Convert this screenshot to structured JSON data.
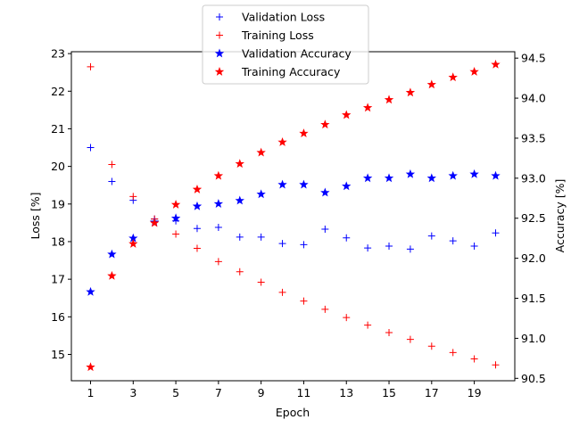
{
  "chart_data": {
    "type": "scatter",
    "xlabel": "Epoch",
    "ylabel_left": "Loss [%]",
    "ylabel_right": "Accuracy [%]",
    "x": [
      1,
      2,
      3,
      4,
      5,
      6,
      7,
      8,
      9,
      10,
      11,
      12,
      13,
      14,
      15,
      16,
      17,
      18,
      19,
      20
    ],
    "x_ticks": [
      "1",
      "3",
      "5",
      "7",
      "9",
      "11",
      "13",
      "15",
      "17",
      "19"
    ],
    "x_tick_values": [
      1,
      3,
      5,
      7,
      9,
      11,
      13,
      15,
      17,
      19
    ],
    "x_range": [
      0.1,
      20.9
    ],
    "y_left_range": [
      14.3,
      23.05
    ],
    "y_left_ticks": [
      "15",
      "16",
      "17",
      "18",
      "19",
      "20",
      "21",
      "22",
      "23"
    ],
    "y_left_tick_values": [
      15,
      16,
      17,
      18,
      19,
      20,
      21,
      22,
      23
    ],
    "y_right_range": [
      90.47,
      94.58
    ],
    "y_right_ticks": [
      "90.5",
      "91.0",
      "91.5",
      "92.0",
      "92.5",
      "93.0",
      "93.5",
      "94.0",
      "94.5"
    ],
    "y_right_tick_values": [
      90.5,
      91.0,
      91.5,
      92.0,
      92.5,
      93.0,
      93.5,
      94.0,
      94.5
    ],
    "legend_position": "top-center",
    "series": [
      {
        "name": "Validation Loss",
        "axis": "left",
        "marker": "plus",
        "color": "#0000ff",
        "values": [
          20.5,
          19.6,
          19.1,
          18.6,
          18.55,
          18.35,
          18.38,
          18.12,
          18.12,
          17.95,
          17.92,
          18.33,
          18.1,
          17.83,
          17.88,
          17.8,
          18.15,
          18.02,
          17.88,
          18.23
        ]
      },
      {
        "name": "Training Loss",
        "axis": "left",
        "marker": "plus",
        "color": "#ff0000",
        "values": [
          22.65,
          20.05,
          19.2,
          18.6,
          18.2,
          17.82,
          17.47,
          17.2,
          16.92,
          16.65,
          16.42,
          16.2,
          15.98,
          15.78,
          15.58,
          15.4,
          15.22,
          15.05,
          14.88,
          14.72
        ]
      },
      {
        "name": "Validation Accuracy",
        "axis": "right",
        "marker": "star",
        "color": "#0000ff",
        "values": [
          91.58,
          92.05,
          92.25,
          92.45,
          92.5,
          92.65,
          92.68,
          92.72,
          92.8,
          92.92,
          92.92,
          92.82,
          92.9,
          93.0,
          93.0,
          93.05,
          93.0,
          93.03,
          93.05,
          93.03
        ]
      },
      {
        "name": "Training Accuracy",
        "axis": "right",
        "marker": "star",
        "color": "#ff0000",
        "values": [
          90.64,
          91.78,
          92.18,
          92.44,
          92.67,
          92.86,
          93.03,
          93.18,
          93.32,
          93.45,
          93.56,
          93.67,
          93.79,
          93.88,
          93.98,
          94.07,
          94.17,
          94.26,
          94.33,
          94.42
        ]
      }
    ]
  }
}
